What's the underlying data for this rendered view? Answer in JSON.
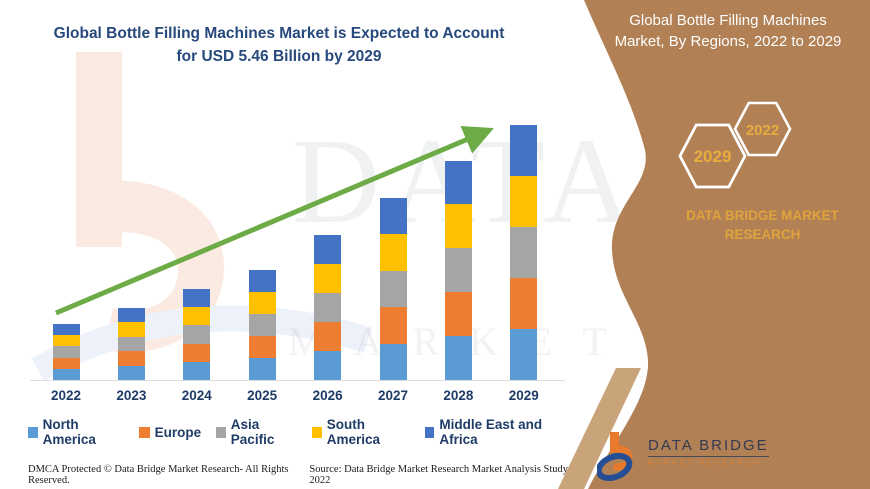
{
  "header": {
    "chart_title_line1": "Global Bottle Filling Machines Market is Expected to Account",
    "chart_title_line2": "for USD 5.46 Billion by 2029",
    "panel_title_line1": "Global Bottle Filling Machines",
    "panel_title_line2": "Market, By Regions, 2022 to 2029"
  },
  "side_panel": {
    "hexagon_front_label": "2029",
    "hexagon_back_label": "2022",
    "brand_line1": "DATA BRIDGE MARKET",
    "brand_line2": "RESEARCH",
    "colors": {
      "panel_tan": "#B18155",
      "panel_tan_light": "#C9A379",
      "gold_text": "#DFA23C"
    }
  },
  "logo": {
    "name_text": "DATA BRIDGE",
    "subtext": "MARKET RESEARCH",
    "colors": {
      "orange": "#E87A2C",
      "blue": "#254E94",
      "name_navy": "#333A52"
    }
  },
  "watermark": {
    "line1": "DATA BRIDGE",
    "line2": "MARKET RESEARCH"
  },
  "footer": {
    "left": "DMCA Protected © Data Bridge Market Research- All Rights Reserved.",
    "right": "Source: Data Bridge Market Research Market Analysis Study 2022"
  },
  "chart_data": {
    "type": "bar",
    "stacked": true,
    "title": "Global Bottle Filling Machines Market, By Regions, 2022 to 2029",
    "xlabel": "",
    "ylabel": "",
    "y_axis_shown": false,
    "unit": "USD Billion",
    "legend_position": "bottom",
    "categories": [
      "2022",
      "2023",
      "2024",
      "2025",
      "2026",
      "2027",
      "2028",
      "2029"
    ],
    "series": [
      {
        "name": "North America",
        "color": "#5B9BD5",
        "values": [
          0.24,
          0.31,
          0.39,
          0.47,
          0.62,
          0.78,
          0.94,
          1.09
        ]
      },
      {
        "name": "Europe",
        "color": "#ED7D31",
        "values": [
          0.24,
          0.31,
          0.39,
          0.47,
          0.62,
          0.78,
          0.94,
          1.09
        ]
      },
      {
        "name": "Asia Pacific",
        "color": "#A5A5A5",
        "values": [
          0.24,
          0.31,
          0.39,
          0.47,
          0.62,
          0.78,
          0.94,
          1.09
        ]
      },
      {
        "name": "South America",
        "color": "#FFC000",
        "values": [
          0.24,
          0.31,
          0.39,
          0.47,
          0.62,
          0.78,
          0.94,
          1.09
        ]
      },
      {
        "name": "Middle East and Africa",
        "color": "#4472C4",
        "values": [
          0.24,
          0.31,
          0.39,
          0.47,
          0.62,
          0.78,
          0.94,
          1.1
        ]
      }
    ],
    "estimated_totals_usd_billion": [
      1.2,
      1.55,
      1.95,
      2.35,
      3.1,
      3.9,
      4.7,
      5.46
    ],
    "annotations": [
      "green upward trend arrow from 2022 toward 2029 bar"
    ],
    "note": "Per-region values estimated from bar segment heights; no y-axis labels shown in source image."
  }
}
